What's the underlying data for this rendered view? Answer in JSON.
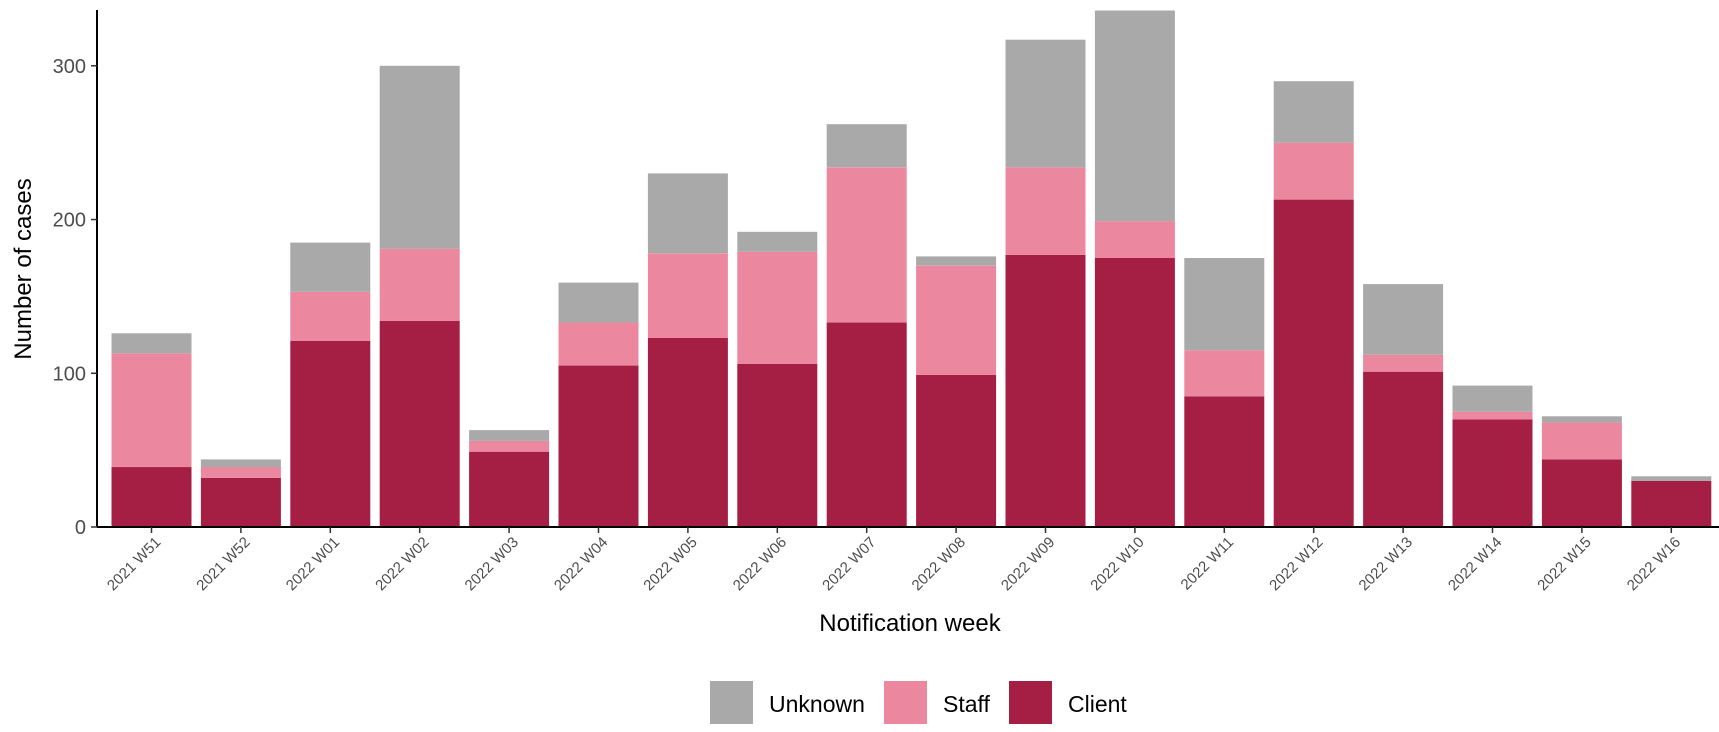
{
  "chart_data": {
    "type": "bar",
    "stacked": true,
    "title": "",
    "xlabel": "Notification week",
    "ylabel": "Number of cases",
    "ylim": [
      0,
      335
    ],
    "yticks": [
      0,
      100,
      200,
      300
    ],
    "grid": false,
    "legend_position": "bottom",
    "categories": [
      "2021 W51",
      "2021 W52",
      "2022 W01",
      "2022 W02",
      "2022 W03",
      "2022 W04",
      "2022 W05",
      "2022 W06",
      "2022 W07",
      "2022 W08",
      "2022 W09",
      "2022 W10",
      "2022 W11",
      "2022 W12",
      "2022 W13",
      "2022 W14",
      "2022 W15",
      "2022 W16"
    ],
    "series": [
      {
        "name": "Client",
        "color": "#A51F44",
        "values": [
          39,
          32,
          121,
          134,
          49,
          105,
          123,
          106,
          133,
          99,
          177,
          175,
          85,
          213,
          101,
          70,
          44,
          30
        ]
      },
      {
        "name": "Staff",
        "color": "#EB889F",
        "values": [
          74,
          7,
          32,
          47,
          7,
          28,
          55,
          73,
          101,
          71,
          57,
          24,
          30,
          37,
          11,
          5,
          24,
          0
        ]
      },
      {
        "name": "Unknown",
        "color": "#A9A9A9",
        "values": [
          13,
          5,
          32,
          119,
          7,
          26,
          52,
          13,
          28,
          6,
          83,
          137,
          60,
          40,
          46,
          17,
          4,
          3
        ]
      }
    ],
    "legend_order": [
      "Unknown",
      "Staff",
      "Client"
    ]
  }
}
